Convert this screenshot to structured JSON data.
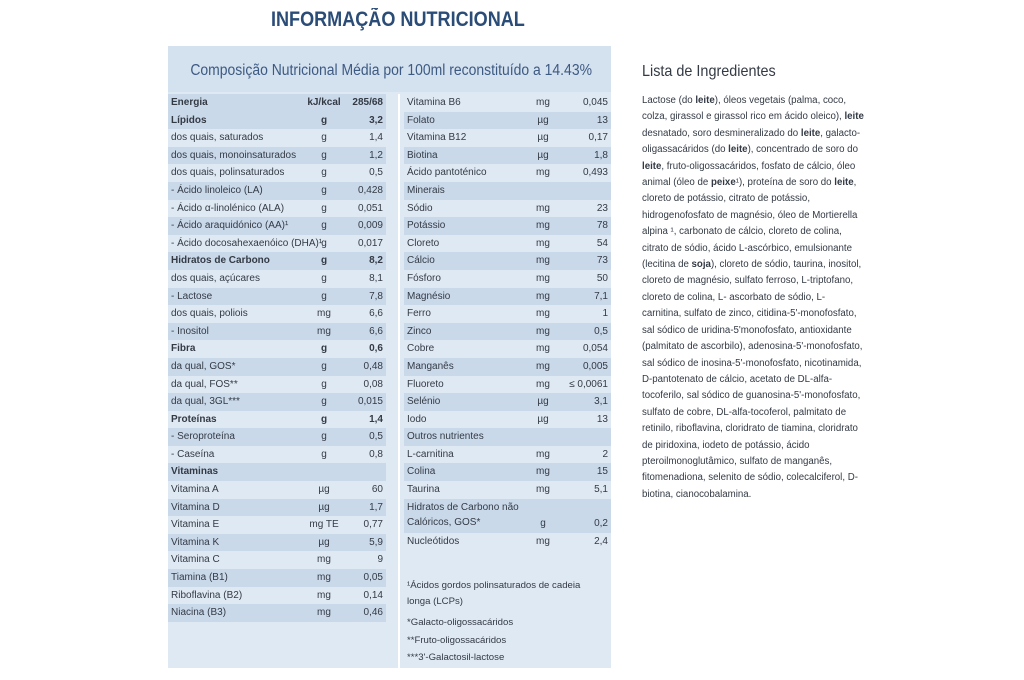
{
  "header": {
    "title": "INFORMAÇÃO NUTRICIONAL"
  },
  "panel": {
    "title": "Composição Nutricional Média por 100ml reconstituído a 14.43%"
  },
  "left_rows": [
    {
      "label": "Energia",
      "unit": "kJ/kcal",
      "value": "285/68",
      "bold": true,
      "shade": true
    },
    {
      "label": "Lípidos",
      "unit": "g",
      "value": "3,2",
      "bold": true,
      "shade": true
    },
    {
      "label": "dos quais, saturados",
      "unit": "g",
      "value": "1,4",
      "bold": false,
      "shade": false
    },
    {
      "label": "dos quais, monoinsaturados",
      "unit": "g",
      "value": "1,2",
      "bold": false,
      "shade": true
    },
    {
      "label": "dos quais, polinsaturados",
      "unit": "g",
      "value": "0,5",
      "bold": false,
      "shade": false
    },
    {
      "label": "- Ácido linoleico (LA)",
      "unit": "g",
      "value": "0,428",
      "bold": false,
      "shade": true
    },
    {
      "label": "- Ácido α-linolénico (ALA)",
      "unit": "g",
      "value": "0,051",
      "bold": false,
      "shade": false
    },
    {
      "label": "- Ácido araquidónico (AA)¹",
      "unit": "g",
      "value": "0,009",
      "bold": false,
      "shade": true
    },
    {
      "label": "- Ácido docosahexaenóico (DHA)¹",
      "unit": "g",
      "value": "0,017",
      "bold": false,
      "shade": false
    },
    {
      "label": "Hidratos de Carbono",
      "unit": "g",
      "value": "8,2",
      "bold": true,
      "shade": true
    },
    {
      "label": "dos quais, açúcares",
      "unit": "g",
      "value": "8,1",
      "bold": false,
      "shade": false
    },
    {
      "label": "- Lactose",
      "unit": "g",
      "value": "7,8",
      "bold": false,
      "shade": true
    },
    {
      "label": "dos quais, poliois",
      "unit": "mg",
      "value": "6,6",
      "bold": false,
      "shade": false
    },
    {
      "label": "- Inositol",
      "unit": "mg",
      "value": "6,6",
      "bold": false,
      "shade": true
    },
    {
      "label": "Fibra",
      "unit": "g",
      "value": "0,6",
      "bold": true,
      "shade": false
    },
    {
      "label": "da qual, GOS*",
      "unit": "g",
      "value": "0,48",
      "bold": false,
      "shade": true
    },
    {
      "label": "da qual, FOS**",
      "unit": "g",
      "value": "0,08",
      "bold": false,
      "shade": false
    },
    {
      "label": "da qual, 3GL***",
      "unit": "g",
      "value": "0,015",
      "bold": false,
      "shade": true
    },
    {
      "label": "Proteínas",
      "unit": "g",
      "value": "1,4",
      "bold": true,
      "shade": false
    },
    {
      "label": "- Seroproteína",
      "unit": "g",
      "value": "0,5",
      "bold": false,
      "shade": true
    },
    {
      "label": "- Caseína",
      "unit": "g",
      "value": "0,8",
      "bold": false,
      "shade": false
    },
    {
      "label": "Vitaminas",
      "unit": "",
      "value": "",
      "bold": true,
      "shade": true
    },
    {
      "label": "Vitamina A",
      "unit": "µg",
      "value": "60",
      "bold": false,
      "shade": false
    },
    {
      "label": "Vitamina D",
      "unit": "µg",
      "value": "1,7",
      "bold": false,
      "shade": true
    },
    {
      "label": "Vitamina E",
      "unit": "mg TE",
      "value": "0,77",
      "bold": false,
      "shade": false
    },
    {
      "label": "Vitamina K",
      "unit": "µg",
      "value": "5,9",
      "bold": false,
      "shade": true
    },
    {
      "label": "Vitamina C",
      "unit": "mg",
      "value": "9",
      "bold": false,
      "shade": false
    },
    {
      "label": "Tiamina (B1)",
      "unit": "mg",
      "value": "0,05",
      "bold": false,
      "shade": true
    },
    {
      "label": "Riboflavina (B2)",
      "unit": "mg",
      "value": "0,14",
      "bold": false,
      "shade": false
    },
    {
      "label": "Niacina (B3)",
      "unit": "mg",
      "value": "0,46",
      "bold": false,
      "shade": true
    }
  ],
  "right_rows": [
    {
      "label": "Vitamina B6",
      "unit": "mg",
      "value": "0,045",
      "shade": false,
      "tall": false
    },
    {
      "label": "Folato",
      "unit": "µg",
      "value": "13",
      "shade": true,
      "tall": false
    },
    {
      "label": "Vitamina B12",
      "unit": "µg",
      "value": "0,17",
      "shade": false,
      "tall": false
    },
    {
      "label": "Biotina",
      "unit": "µg",
      "value": "1,8",
      "shade": true,
      "tall": false
    },
    {
      "label": "Ácido pantoténico",
      "unit": "mg",
      "value": "0,493",
      "shade": false,
      "tall": false
    },
    {
      "label": "Minerais",
      "unit": "",
      "value": "",
      "shade": true,
      "tall": false
    },
    {
      "label": "Sódio",
      "unit": "mg",
      "value": "23",
      "shade": false,
      "tall": false
    },
    {
      "label": "Potássio",
      "unit": "mg",
      "value": "78",
      "shade": true,
      "tall": false
    },
    {
      "label": "Cloreto",
      "unit": "mg",
      "value": "54",
      "shade": false,
      "tall": false
    },
    {
      "label": "Cálcio",
      "unit": "mg",
      "value": "73",
      "shade": true,
      "tall": false
    },
    {
      "label": "Fósforo",
      "unit": "mg",
      "value": "50",
      "shade": false,
      "tall": false
    },
    {
      "label": "Magnésio",
      "unit": "mg",
      "value": "7,1",
      "shade": true,
      "tall": false
    },
    {
      "label": "Ferro",
      "unit": "mg",
      "value": "1",
      "shade": false,
      "tall": false
    },
    {
      "label": "Zinco",
      "unit": "mg",
      "value": "0,5",
      "shade": true,
      "tall": false
    },
    {
      "label": "Cobre",
      "unit": "mg",
      "value": "0,054",
      "shade": false,
      "tall": false
    },
    {
      "label": "Manganês",
      "unit": "mg",
      "value": "0,005",
      "shade": true,
      "tall": false
    },
    {
      "label": "Fluoreto",
      "unit": "mg",
      "value": "≤ 0,0061",
      "shade": false,
      "tall": false
    },
    {
      "label": "Selénio",
      "unit": "µg",
      "value": "3,1",
      "shade": true,
      "tall": false
    },
    {
      "label": "Iodo",
      "unit": "µg",
      "value": "13",
      "shade": false,
      "tall": false
    },
    {
      "label": "Outros nutrientes",
      "unit": "",
      "value": "",
      "shade": true,
      "tall": false
    },
    {
      "label": "L-carnitina",
      "unit": "mg",
      "value": "2",
      "shade": false,
      "tall": false
    },
    {
      "label": "Colina",
      "unit": "mg",
      "value": "15",
      "shade": true,
      "tall": false
    },
    {
      "label": "Taurina",
      "unit": "mg",
      "value": "5,1",
      "shade": false,
      "tall": false
    },
    {
      "label": "Hidratos de Carbono não Calóricos, GOS*",
      "unit": "g",
      "value": "0,2",
      "shade": true,
      "tall": true
    },
    {
      "label": "Nucleótidos",
      "unit": "mg",
      "value": "2,4",
      "shade": false,
      "tall": false
    }
  ],
  "footnotes": {
    "lcp": "¹Ácidos gordos polinsaturados de cadeia longa (LCPs)",
    "gos": "*Galacto-oligossacáridos",
    "fos": "**Fruto-oligossacáridos",
    "gl3": "***3'-Galactosil-lactose"
  },
  "ingredients": {
    "title": "Lista de Ingredientes",
    "segments": [
      {
        "t": "Lactose (do ",
        "b": false
      },
      {
        "t": "leite",
        "b": true
      },
      {
        "t": "),  óleos vegetais (palma, coco, colza, girassol e girassol rico em ácido oleico), ",
        "b": false
      },
      {
        "t": "leite",
        "b": true
      },
      {
        "t": " desnatado, soro desmineralizado do ",
        "b": false
      },
      {
        "t": "leite",
        "b": true
      },
      {
        "t": ", galacto-oligassacáridos (do ",
        "b": false
      },
      {
        "t": "leite",
        "b": true
      },
      {
        "t": "),  concentrado de soro do ",
        "b": false
      },
      {
        "t": "leite",
        "b": true
      },
      {
        "t": ", fruto-oligossacáridos, fosfato de cálcio, óleo animal (óleo de ",
        "b": false
      },
      {
        "t": "peixe",
        "b": true
      },
      {
        "t": "¹), proteína de soro do ",
        "b": false
      },
      {
        "t": "leite",
        "b": true
      },
      {
        "t": ", cloreto de potássio, citrato de potássio, hidrogenofosfato de magnésio, óleo de Mortierella alpina ¹,  carbonato de cálcio, cloreto de colina, citrato de sódio, ácido L-ascórbico, emulsionante (lecitina de ",
        "b": false
      },
      {
        "t": "soja",
        "b": true
      },
      {
        "t": "), cloreto de sódio, taurina, inositol, cloreto de magnésio, sulfato ferroso, L-triptofano, cloreto de colina, L- ascorbato de sódio, L-carnitina, sulfato de zinco, citidina-5'-monofosfato, sal sódico de uridina-5'monofosfato, antioxidante (palmitato de ascorbilo), adenosina-5'-monofosfato, sal sódico de inosina-5'-monofosfato, nicotinamida, D-pantotenato de cálcio, acetato de DL-alfa-tocoferilo, sal sódico de guanosina-5'-monofosfato, sulfato de cobre, DL-alfa-tocoferol, palmitato de retinilo, riboflavina, cloridrato de tiamina, cloridrato de piridoxina, iodeto de potássio, ácido pteroilmonoglutâmico, sulfato de manganês, fitomenadiona, selenito de sódio, colecalciferol, D-biotina, cianocobalamina.",
        "b": false
      }
    ]
  }
}
